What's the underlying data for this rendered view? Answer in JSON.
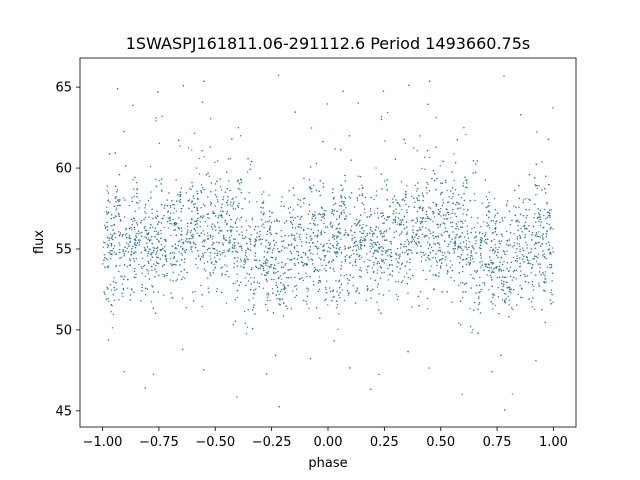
{
  "chart_data": {
    "type": "scatter",
    "title": "1SWASPJ161811.06-291112.6 Period 1493660.75s",
    "xlabel": "phase",
    "ylabel": "flux",
    "xlim": [
      -1.1,
      1.1
    ],
    "ylim": [
      44.0,
      66.8
    ],
    "xticks": [
      -1.0,
      -0.75,
      -0.5,
      -0.25,
      0.0,
      0.25,
      0.5,
      0.75,
      1.0
    ],
    "xtick_labels": [
      "−1.00",
      "−0.75",
      "−0.50",
      "−0.25",
      "0.00",
      "0.25",
      "0.50",
      "0.75",
      "1.00"
    ],
    "yticks": [
      45,
      50,
      55,
      60,
      65
    ],
    "ytick_labels": [
      "45",
      "50",
      "55",
      "60",
      "65"
    ],
    "grid": false,
    "legend": "none",
    "marker_color": "#1f77b4",
    "series": [
      {
        "profile_phase": [
          0.0,
          0.05,
          0.1,
          0.15,
          0.2,
          0.25,
          0.3,
          0.35,
          0.4,
          0.45,
          0.5,
          0.55,
          0.6,
          0.65,
          0.7,
          0.75,
          0.8,
          0.85,
          0.9,
          0.95,
          1.0
        ],
        "profile_flux_center": [
          54.5,
          56.0,
          55.2,
          55.8,
          55.0,
          55.5,
          56.0,
          55.2,
          55.5,
          55.8,
          56.5,
          56.0,
          55.5,
          55.0,
          55.3,
          54.5,
          53.5,
          55.2,
          55.0,
          55.5,
          55.0
        ],
        "profile_flux_spread": [
          2.8,
          3.6,
          3.2,
          3.0,
          3.0,
          3.2,
          3.0,
          3.1,
          3.0,
          3.3,
          3.6,
          3.4,
          3.3,
          3.2,
          3.0,
          3.0,
          3.5,
          3.2,
          3.0,
          3.2,
          2.8
        ]
      }
    ]
  }
}
